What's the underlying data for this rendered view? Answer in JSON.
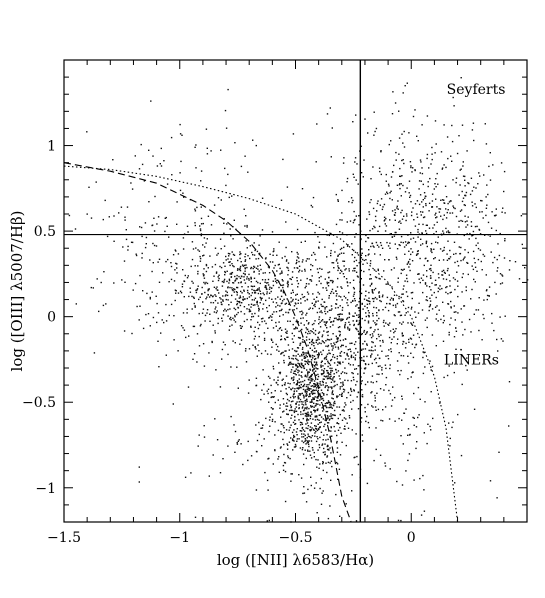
{
  "chart_data": {
    "type": "scatter",
    "title": "",
    "xlabel": "log ([NII] λ6583/Hα)",
    "ylabel": "log ([OIII] λ5007/Hβ)",
    "xlim": [
      -1.5,
      0.5
    ],
    "ylim": [
      -1.2,
      1.5
    ],
    "x_ticks": [
      -1.5,
      -1,
      -0.5,
      0
    ],
    "x_tick_labels": [
      "−1.5",
      "−1",
      "−0.5",
      "0"
    ],
    "y_ticks": [
      -1,
      -0.5,
      0,
      0.5,
      1
    ],
    "y_tick_labels": [
      "−1",
      "−0.5",
      "0",
      "0.5",
      "1"
    ],
    "grid": false,
    "legend": "none",
    "annotations": [
      {
        "text": "Seyferts",
        "x": 0.28,
        "y": 1.3
      },
      {
        "text": "LINERs",
        "x": 0.26,
        "y": -0.28
      }
    ],
    "reference_lines": [
      {
        "kind": "vertical",
        "x": -0.22,
        "style": "solid"
      },
      {
        "kind": "horizontal",
        "y": 0.48,
        "style": "solid"
      }
    ],
    "curves": [
      {
        "style": "dashed",
        "x": [
          -1.5,
          -1.3,
          -1.1,
          -0.9,
          -0.8,
          -0.7,
          -0.6,
          -0.55,
          -0.5,
          -0.45,
          -0.4,
          -0.35,
          -0.3,
          -0.26,
          -0.23
        ],
        "y": [
          0.9,
          0.85,
          0.78,
          0.65,
          0.56,
          0.44,
          0.27,
          0.15,
          0.0,
          -0.18,
          -0.42,
          -0.7,
          -1.05,
          -1.2,
          -1.2
        ]
      },
      {
        "style": "dotted",
        "x": [
          -1.5,
          -1.3,
          -1.1,
          -0.9,
          -0.7,
          -0.5,
          -0.3,
          -0.1,
          0.0,
          0.1,
          0.15,
          0.2
        ],
        "y": [
          0.88,
          0.86,
          0.82,
          0.76,
          0.69,
          0.6,
          0.45,
          0.2,
          0.0,
          -0.35,
          -0.65,
          -1.2
        ]
      }
    ],
    "point_clouds": [
      {
        "name": "",
        "center_x": -0.44,
        "center_y": -0.45,
        "spread_x": 0.08,
        "spread_y": 0.22,
        "count": 900
      },
      {
        "name": "",
        "center_x": -0.7,
        "center_y": 0.15,
        "spread_x": 0.18,
        "spread_y": 0.14,
        "count": 700
      },
      {
        "name": "",
        "center_x": -0.25,
        "center_y": -0.05,
        "spread_x": 0.12,
        "spread_y": 0.25,
        "count": 500
      },
      {
        "name": "",
        "center_x": 0.05,
        "center_y": 0.45,
        "spread_x": 0.2,
        "spread_y": 0.35,
        "count": 900
      },
      {
        "name": "",
        "center_x": -1.0,
        "center_y": 0.5,
        "spread_x": 0.25,
        "spread_y": 0.3,
        "count": 250
      },
      {
        "name": "",
        "center_x": -0.35,
        "center_y": -0.55,
        "spread_x": 0.3,
        "spread_y": 0.35,
        "count": 400
      }
    ]
  }
}
